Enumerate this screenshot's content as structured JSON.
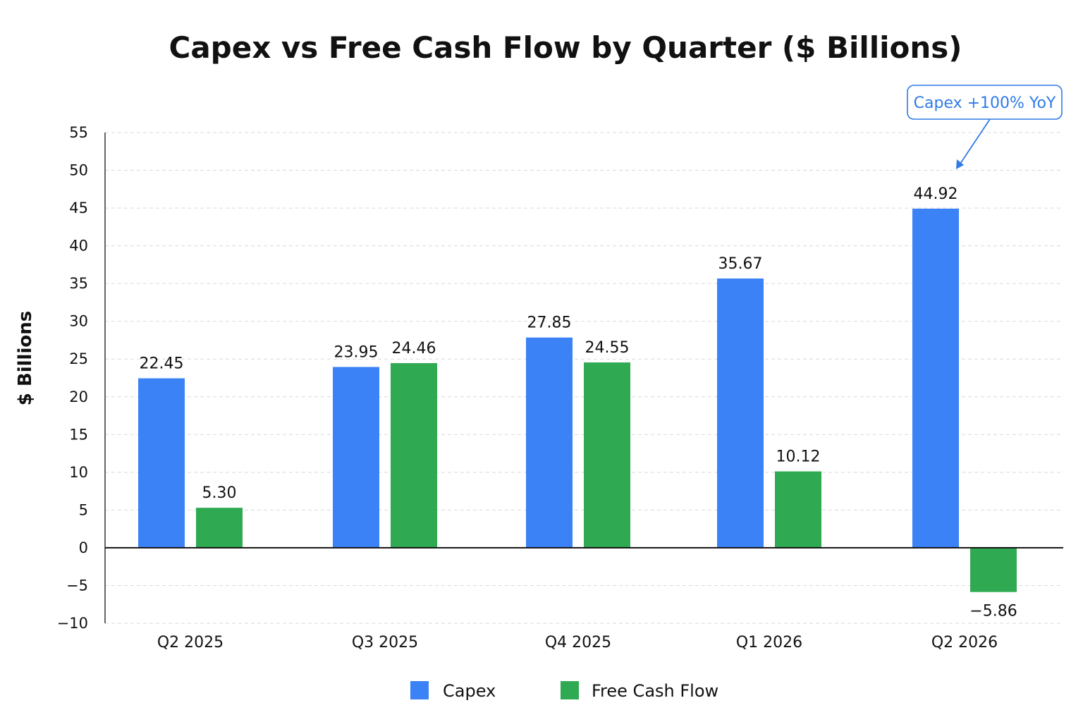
{
  "chart_data": {
    "type": "bar",
    "title": "Capex vs Free Cash Flow by Quarter ($ Billions)",
    "xlabel": "",
    "ylabel": "$ Billions",
    "ylim": [
      -10,
      55
    ],
    "yticks": [
      55,
      50,
      45,
      40,
      35,
      30,
      25,
      20,
      15,
      10,
      5,
      0,
      -5,
      -10
    ],
    "ytick_labels": [
      "55",
      "50",
      "45",
      "40",
      "35",
      "30",
      "25",
      "20",
      "15",
      "10",
      "5",
      "0",
      "−5",
      "−10"
    ],
    "grid": true,
    "legend_position": "bottom-center",
    "categories": [
      "Q2 2025",
      "Q3 2025",
      "Q4 2025",
      "Q1 2026",
      "Q2 2026"
    ],
    "series": [
      {
        "name": "Capex",
        "color": "#3b82f6",
        "values": [
          22.45,
          23.95,
          27.85,
          35.67,
          44.92
        ],
        "labels": [
          "22.45",
          "23.95",
          "27.85",
          "35.67",
          "44.92"
        ]
      },
      {
        "name": "Free Cash Flow",
        "color": "#2faa52",
        "values": [
          5.3,
          24.46,
          24.55,
          10.12,
          -5.86
        ],
        "labels": [
          "5.30",
          "24.46",
          "24.55",
          "10.12",
          "−5.86"
        ]
      }
    ],
    "annotation": {
      "text": "Capex +100% YoY",
      "category": "Q2 2026",
      "series": "Capex",
      "color": "#2f7be6"
    }
  }
}
